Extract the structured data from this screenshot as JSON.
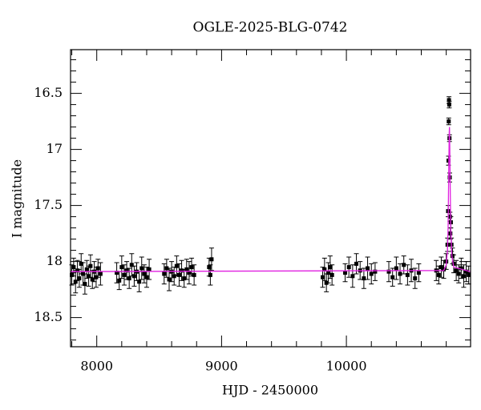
{
  "chart_data": {
    "type": "scatter",
    "title": "OGLE-2025-BLG-0742",
    "xlabel": "HJD - 2450000",
    "ylabel": "I magnitude",
    "xlim": [
      7790,
      10995
    ],
    "ylim": [
      18.76,
      16.11
    ],
    "xticks": [
      8000,
      9000,
      10000
    ],
    "xticks_minor": [
      7800,
      8200,
      8400,
      8600,
      8800,
      9200,
      9400,
      9600,
      9800,
      10200,
      10400,
      10600,
      10800
    ],
    "yticks": [
      16.5,
      17,
      17.5,
      18,
      18.5
    ],
    "yticks_minor": [
      16.2,
      16.3,
      16.4,
      16.6,
      16.7,
      16.8,
      16.9,
      17.1,
      17.2,
      17.3,
      17.4,
      17.6,
      17.7,
      17.8,
      17.9,
      18.1,
      18.2,
      18.3,
      18.4,
      18.6,
      18.7
    ],
    "points": {
      "color": "#000000",
      "x": [
        7800,
        7815,
        7830,
        7845,
        7860,
        7875,
        7890,
        7905,
        7920,
        7935,
        7950,
        7965,
        7980,
        7995,
        8010,
        8030,
        8160,
        8180,
        8200,
        8220,
        8240,
        8260,
        8280,
        8300,
        8320,
        8340,
        8360,
        8380,
        8400,
        8420,
        8540,
        8560,
        8580,
        8600,
        8620,
        8640,
        8660,
        8680,
        8700,
        8720,
        8740,
        8760,
        8780,
        8900,
        8910,
        8920,
        9810,
        9825,
        9840,
        9855,
        9870,
        9885,
        9990,
        10020,
        10050,
        10080,
        10110,
        10140,
        10170,
        10200,
        10230,
        10340,
        10370,
        10400,
        10430,
        10460,
        10490,
        10520,
        10550,
        10580,
        10720,
        10740,
        10760,
        10780,
        10800,
        10810,
        10815,
        10818,
        10820,
        10822,
        10824,
        10826,
        10828,
        10830,
        10833,
        10837,
        10842,
        10850,
        10860,
        10880,
        10900,
        10920,
        10940,
        10960,
        10980
      ],
      "y": [
        18.12,
        18.05,
        18.18,
        18.08,
        18.15,
        18.02,
        18.11,
        18.2,
        18.07,
        18.13,
        18.04,
        18.16,
        18.09,
        18.14,
        18.06,
        18.11,
        18.1,
        18.17,
        18.05,
        18.12,
        18.08,
        18.15,
        18.03,
        18.13,
        18.09,
        18.18,
        18.06,
        18.11,
        18.14,
        18.07,
        18.11,
        18.06,
        18.16,
        18.09,
        18.13,
        18.04,
        18.12,
        18.08,
        18.15,
        18.07,
        18.1,
        18.05,
        18.12,
        18.05,
        18.12,
        17.98,
        18.14,
        18.07,
        18.19,
        18.1,
        18.05,
        18.12,
        18.1,
        18.05,
        18.13,
        18.02,
        18.08,
        18.15,
        18.06,
        18.11,
        18.09,
        18.09,
        18.14,
        18.06,
        18.11,
        18.03,
        18.12,
        18.08,
        18.15,
        18.1,
        18.08,
        18.12,
        18.05,
        18.07,
        18.0,
        17.85,
        17.55,
        17.1,
        16.75,
        16.56,
        16.6,
        16.9,
        17.25,
        17.6,
        17.75,
        17.65,
        17.85,
        17.95,
        18.02,
        18.08,
        18.11,
        18.06,
        18.13,
        18.09,
        18.12
      ],
      "yerr": [
        0.09,
        0.08,
        0.1,
        0.09,
        0.08,
        0.09,
        0.1,
        0.09,
        0.08,
        0.09,
        0.1,
        0.08,
        0.09,
        0.09,
        0.08,
        0.1,
        0.09,
        0.08,
        0.1,
        0.09,
        0.08,
        0.09,
        0.1,
        0.09,
        0.08,
        0.09,
        0.1,
        0.08,
        0.09,
        0.09,
        0.09,
        0.08,
        0.1,
        0.09,
        0.08,
        0.09,
        0.1,
        0.09,
        0.08,
        0.09,
        0.1,
        0.08,
        0.09,
        0.08,
        0.09,
        0.1,
        0.09,
        0.1,
        0.08,
        0.09,
        0.1,
        0.09,
        0.08,
        0.09,
        0.1,
        0.09,
        0.08,
        0.09,
        0.1,
        0.09,
        0.08,
        0.09,
        0.08,
        0.1,
        0.09,
        0.08,
        0.09,
        0.1,
        0.09,
        0.08,
        0.09,
        0.08,
        0.09,
        0.08,
        0.07,
        0.06,
        0.05,
        0.04,
        0.03,
        0.03,
        0.03,
        0.03,
        0.04,
        0.04,
        0.05,
        0.05,
        0.06,
        0.07,
        0.08,
        0.09,
        0.08,
        0.09,
        0.1,
        0.09,
        0.08
      ]
    },
    "model": {
      "color": "#e020e0",
      "x": [
        7790,
        10780,
        10800,
        10810,
        10815,
        10820,
        10824,
        10826,
        10828,
        10832,
        10836,
        10845,
        10860,
        10995
      ],
      "y": [
        18.09,
        18.08,
        18.03,
        17.9,
        17.7,
        17.2,
        16.85,
        16.8,
        16.95,
        17.35,
        17.7,
        17.95,
        18.05,
        18.09
      ]
    }
  }
}
